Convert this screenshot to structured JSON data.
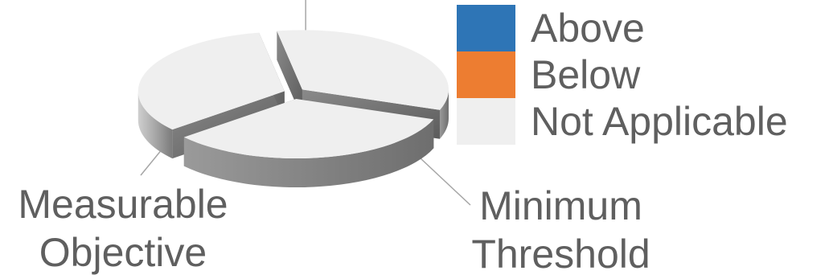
{
  "chart_data": {
    "type": "pie",
    "style": "3d-exploded",
    "slices": [
      {
        "label": "",
        "value": 1,
        "status": "Not Applicable"
      },
      {
        "label": "Minimum Threshold",
        "value": 1,
        "status": "Not Applicable"
      },
      {
        "label": "Measurable Objective",
        "value": 1,
        "status": "Not Applicable"
      }
    ],
    "slice_labels": {
      "minimum": [
        "Minimum",
        "Threshold"
      ],
      "measurable": [
        "Measurable",
        "Objective"
      ]
    },
    "legend": {
      "placement": "top-right",
      "items": [
        {
          "name": "Above",
          "color": "#2e75b6"
        },
        {
          "name": "Below",
          "color": "#ed7d31"
        },
        {
          "name": "Not Applicable",
          "color": "#efefef"
        }
      ]
    }
  }
}
